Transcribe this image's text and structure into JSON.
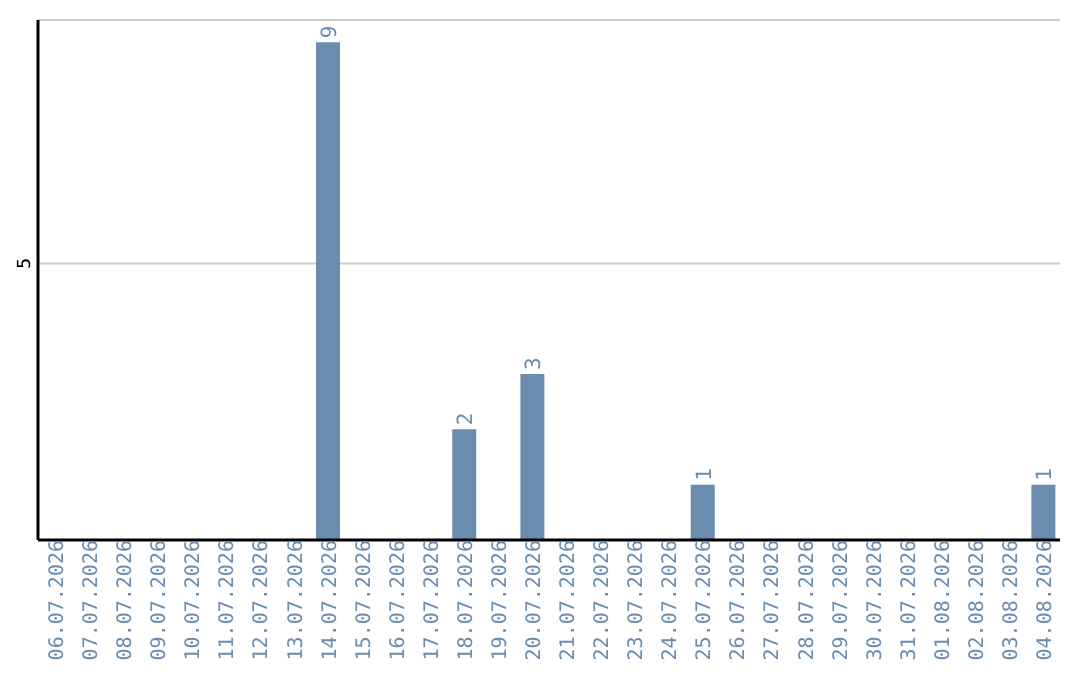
{
  "chart_data": {
    "type": "bar",
    "categories": [
      "06.07.2026",
      "07.07.2026",
      "08.07.2026",
      "09.07.2026",
      "10.07.2026",
      "11.07.2026",
      "12.07.2026",
      "13.07.2026",
      "14.07.2026",
      "15.07.2026",
      "16.07.2026",
      "17.07.2026",
      "18.07.2026",
      "19.07.2026",
      "20.07.2026",
      "21.07.2026",
      "22.07.2026",
      "23.07.2026",
      "24.07.2026",
      "25.07.2026",
      "26.07.2026",
      "27.07.2026",
      "28.07.2026",
      "29.07.2026",
      "30.07.2026",
      "31.07.2026",
      "01.08.2026",
      "02.08.2026",
      "03.08.2026",
      "04.08.2026"
    ],
    "values": [
      0,
      0,
      0,
      0,
      0,
      0,
      0,
      0,
      9,
      0,
      0,
      0,
      2,
      0,
      3,
      0,
      0,
      0,
      0,
      1,
      0,
      0,
      0,
      0,
      0,
      0,
      0,
      0,
      0,
      1
    ],
    "value_labels": [
      null,
      null,
      null,
      null,
      null,
      null,
      null,
      null,
      "9",
      null,
      null,
      null,
      "2",
      null,
      "3",
      null,
      null,
      null,
      null,
      "1",
      null,
      null,
      null,
      null,
      null,
      null,
      null,
      null,
      null,
      "1"
    ],
    "color": "#6a8caf",
    "ylim": [
      0,
      9.4
    ],
    "yticks": [
      5
    ],
    "grid": "y",
    "legend": false
  }
}
